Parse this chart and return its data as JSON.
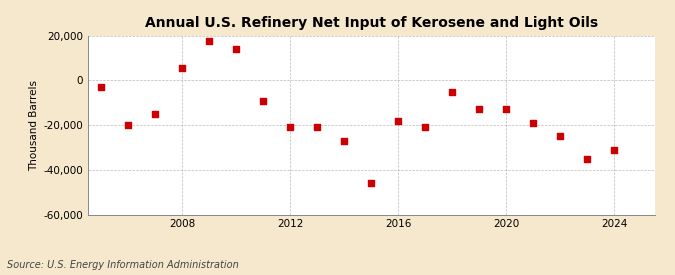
{
  "title": "Annual U.S. Refinery Net Input of Kerosene and Light Oils",
  "ylabel": "Thousand Barrels",
  "source": "Source: U.S. Energy Information Administration",
  "background_color": "#f5e8cc",
  "plot_bg_color": "#ffffff",
  "grid_color": "#aaaaaa",
  "marker_color": "#cc0000",
  "years": [
    2005,
    2006,
    2007,
    2008,
    2009,
    2010,
    2011,
    2012,
    2013,
    2014,
    2015,
    2016,
    2017,
    2018,
    2019,
    2020,
    2021,
    2022,
    2023,
    2024
  ],
  "values": [
    -3000,
    -20000,
    -15000,
    5500,
    17500,
    14000,
    -9000,
    -21000,
    -21000,
    -27000,
    -46000,
    -18000,
    -21000,
    -5000,
    -13000,
    -13000,
    -19000,
    -25000,
    -35000,
    -31000
  ],
  "ylim": [
    -60000,
    20000
  ],
  "yticks": [
    -60000,
    -40000,
    -20000,
    0,
    20000
  ],
  "xlim": [
    2004.5,
    2025.5
  ],
  "xticks": [
    2008,
    2012,
    2016,
    2020,
    2024
  ],
  "title_fontsize": 10,
  "label_fontsize": 7.5,
  "tick_fontsize": 7.5,
  "source_fontsize": 7,
  "marker_size": 5
}
